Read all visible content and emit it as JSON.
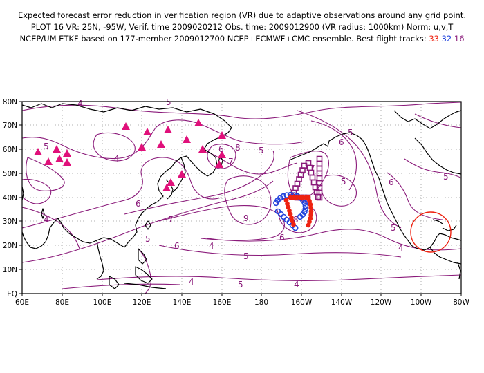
{
  "header": {
    "line1": "Expected forecast error reduction in verification region (VR) due to adaptive observations around any grid point.",
    "line2": "PLOT 16 VR: 25N, -95W, Verif. time 2009020212 Obs. time: 2009012900 (VR radius: 1000km) Norm: u,v,T",
    "line3_prefix": "NCEP/UM ETKF based on 177-member 2009012700 NCEP+ECMWF+CMC ensemble. Best flight tracks:",
    "track_a": "33",
    "track_b": "32",
    "track_c": "16"
  },
  "map": {
    "lon_labels": [
      "60E",
      "80E",
      "100E",
      "120E",
      "140E",
      "160E",
      "180",
      "160W",
      "140W",
      "120W",
      "100W",
      "80W"
    ],
    "lat_labels": [
      "EQ",
      "10N",
      "20N",
      "30N",
      "40N",
      "50N",
      "60N",
      "70N",
      "80N"
    ],
    "contour_labels": [
      "4",
      "5",
      "4",
      "5",
      "6",
      "6",
      "6",
      "7",
      "7",
      "8",
      "9",
      "5",
      "5",
      "6",
      "6",
      "4",
      "5",
      "5",
      "4",
      "4",
      "5",
      "7",
      "6",
      "8",
      "5",
      "5",
      "4",
      "5",
      "4"
    ],
    "colors": {
      "coast": "#000000",
      "contour": "#8a1a7a",
      "track_a": "#ee2211",
      "track_b": "#2244dd",
      "track_c": "#8a1a7a",
      "triangle": "#e0107a",
      "verification_circle": "#ee2211"
    }
  }
}
